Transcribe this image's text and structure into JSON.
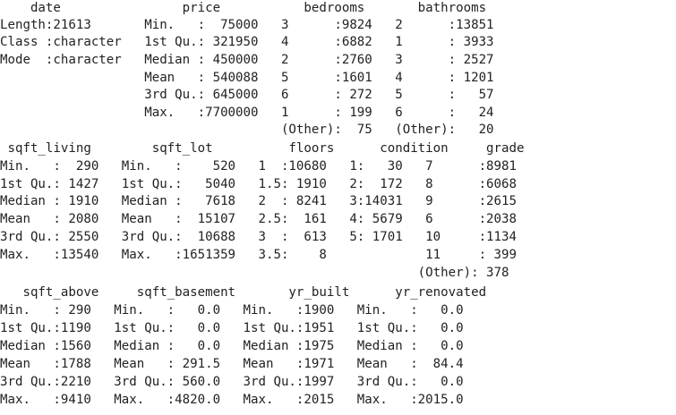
{
  "console": {
    "lines": [
      "    date                price           bedrooms       bathrooms     ",
      "Length:21613       Min.   :  75000   3      :9824   2      :13851  ",
      "Class :character   1st Qu.: 321950   4      :6882   1      : 3933  ",
      "Mode  :character   Median : 450000   2      :2760   3      : 2527  ",
      "                   Mean   : 540088   5      :1601   4      : 1201  ",
      "                   3rd Qu.: 645000   6      : 272   5      :   57  ",
      "                   Max.   :7700000   1      : 199   6      :   24  ",
      "                                     (Other):  75   (Other):   20  ",
      " sqft_living        sqft_lot          floors      condition     grade     ",
      "Min.   :  290   Min.   :    520   1  :10680   1:   30   7      :8981  ",
      "1st Qu.: 1427   1st Qu.:   5040   1.5: 1910   2:  172   8      :6068  ",
      "Median : 1910   Median :   7618   2  : 8241   3:14031   9      :2615  ",
      "Mean   : 2080   Mean   :  15107   2.5:  161   4: 5679   6      :2038  ",
      "3rd Qu.: 2550   3rd Qu.:  10688   3  :  613   5: 1701   10     :1134  ",
      "Max.   :13540   Max.   :1651359   3.5:    8             11     : 399  ",
      "                                                       (Other): 378  ",
      "   sqft_above     sqft_basement       yr_built      yr_renovated  ",
      "Min.   : 290   Min.   :   0.0   Min.   :1900   Min.   :   0.0  ",
      "1st Qu.:1190   1st Qu.:   0.0   1st Qu.:1951   1st Qu.:   0.0  ",
      "Median :1560   Median :   0.0   Median :1975   Median :   0.0  ",
      "Mean   :1788   Mean   : 291.5   Mean   :1971   Mean   :  84.4  ",
      "3rd Qu.:2210   3rd Qu.: 560.0   3rd Qu.:1997   3rd Qu.:   0.0  ",
      "Max.   :9410   Max.   :4820.0   Max.   :2015   Max.   :2015.0  "
    ]
  },
  "colors": {
    "background": "#ffffff",
    "text": "#222222"
  }
}
